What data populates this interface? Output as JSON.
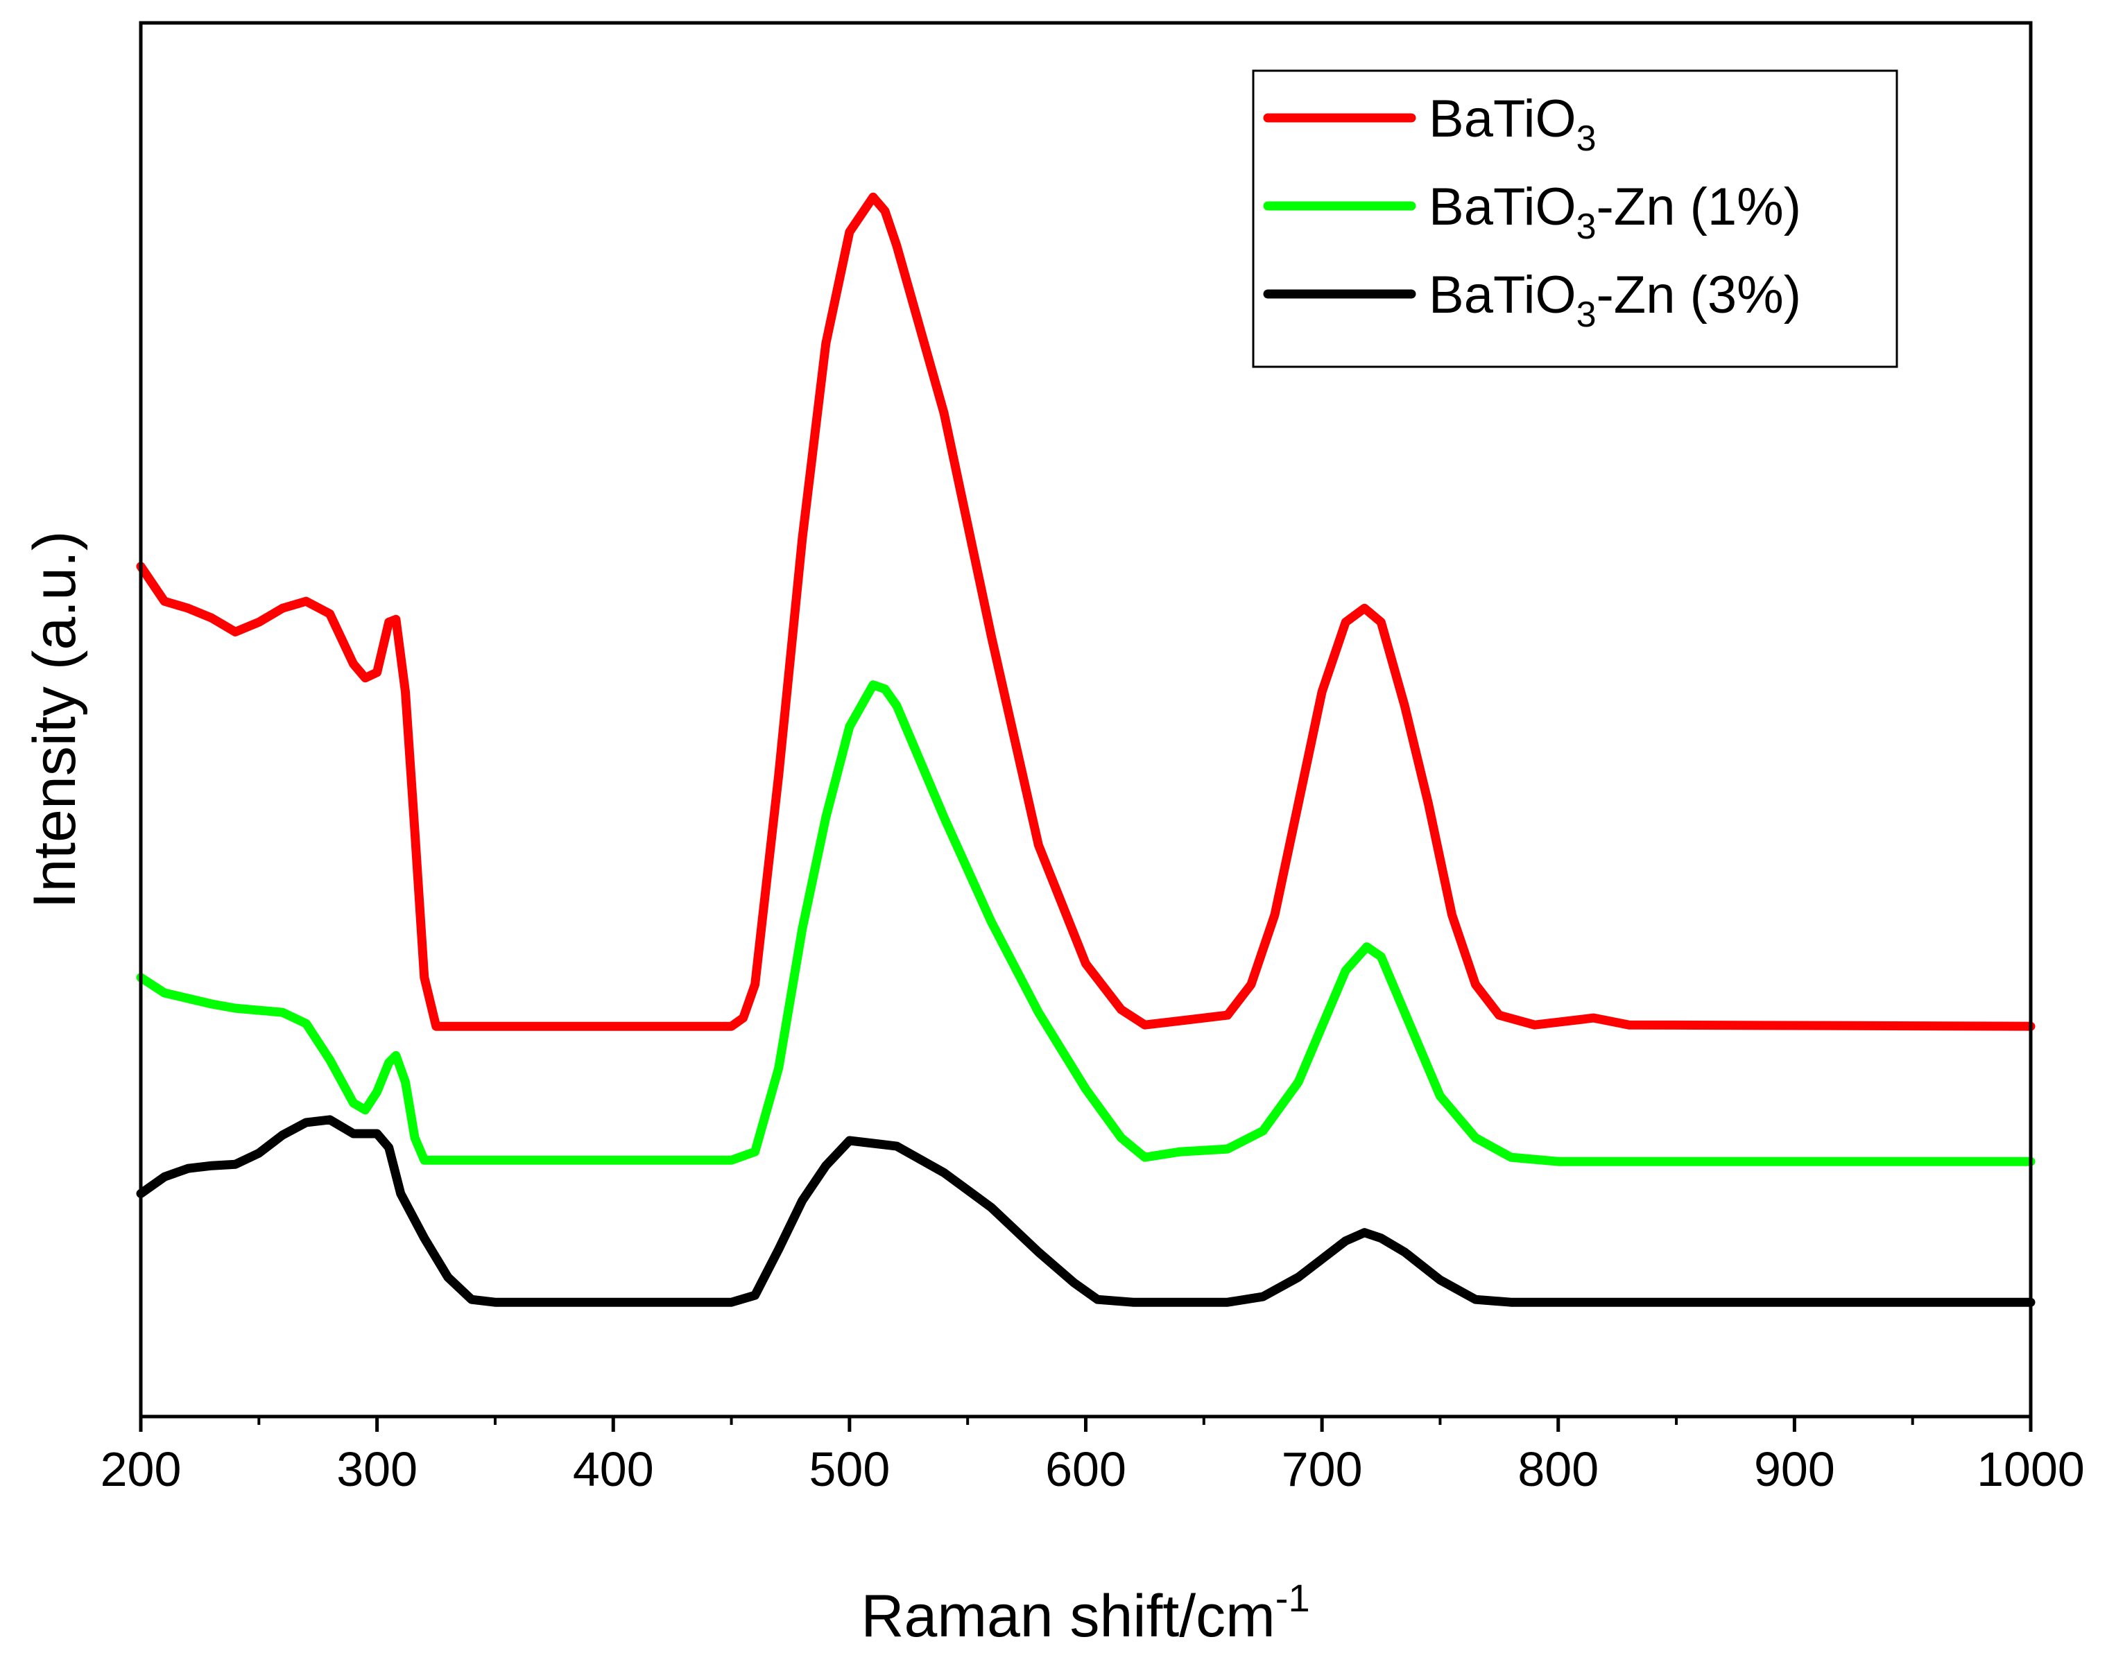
{
  "chart_data": {
    "type": "line",
    "title": "",
    "xlabel": "Raman shift/cm",
    "xlabel_superscript": "-1",
    "ylabel": "Intensity (a.u.)",
    "xlim": [
      200,
      1000
    ],
    "ylim": [
      0,
      100
    ],
    "xticks": [
      200,
      300,
      400,
      500,
      600,
      700,
      800,
      900,
      1000
    ],
    "yticks_shown": false,
    "legend_position": "top-right",
    "series": [
      {
        "name": "BaTiO3",
        "legend_parts": [
          "BaTiO",
          "3",
          ""
        ],
        "color": "#ff0000",
        "points": [
          [
            200,
            61
          ],
          [
            210,
            58.5
          ],
          [
            220,
            58
          ],
          [
            230,
            57.3
          ],
          [
            240,
            56.3
          ],
          [
            250,
            57
          ],
          [
            260,
            58
          ],
          [
            270,
            58.5
          ],
          [
            280,
            57.6
          ],
          [
            290,
            54
          ],
          [
            295,
            53
          ],
          [
            300,
            53.4
          ],
          [
            305,
            57
          ],
          [
            308,
            57.2
          ],
          [
            312,
            52
          ],
          [
            316,
            42
          ],
          [
            320,
            31.5
          ],
          [
            325,
            28
          ],
          [
            400,
            28
          ],
          [
            450,
            28
          ],
          [
            455,
            28.6
          ],
          [
            460,
            31
          ],
          [
            470,
            46
          ],
          [
            480,
            63
          ],
          [
            490,
            77
          ],
          [
            500,
            85
          ],
          [
            510,
            87.5
          ],
          [
            515,
            86.5
          ],
          [
            520,
            84
          ],
          [
            540,
            72
          ],
          [
            560,
            56
          ],
          [
            580,
            41
          ],
          [
            600,
            32.5
          ],
          [
            615,
            29.2
          ],
          [
            625,
            28.1
          ],
          [
            640,
            28.4
          ],
          [
            660,
            28.8
          ],
          [
            670,
            31
          ],
          [
            680,
            36
          ],
          [
            690,
            44
          ],
          [
            700,
            52
          ],
          [
            710,
            57
          ],
          [
            718,
            58
          ],
          [
            725,
            57
          ],
          [
            735,
            51
          ],
          [
            745,
            44
          ],
          [
            755,
            36
          ],
          [
            765,
            31
          ],
          [
            775,
            28.8
          ],
          [
            790,
            28.1
          ],
          [
            800,
            28.3
          ],
          [
            815,
            28.6
          ],
          [
            830,
            28.1
          ],
          [
            1000,
            28
          ]
        ]
      },
      {
        "name": "BaTiO3-Zn (1%)",
        "legend_parts": [
          "BaTiO",
          "3",
          "-Zn (1%)"
        ],
        "color": "#00ff00",
        "points": [
          [
            200,
            31.5
          ],
          [
            210,
            30.4
          ],
          [
            220,
            30
          ],
          [
            230,
            29.6
          ],
          [
            240,
            29.3
          ],
          [
            260,
            29
          ],
          [
            270,
            28.2
          ],
          [
            280,
            25.6
          ],
          [
            290,
            22.5
          ],
          [
            295,
            22
          ],
          [
            300,
            23.3
          ],
          [
            305,
            25.4
          ],
          [
            308,
            25.9
          ],
          [
            312,
            24
          ],
          [
            316,
            20
          ],
          [
            320,
            18.4
          ],
          [
            400,
            18.4
          ],
          [
            450,
            18.4
          ],
          [
            460,
            19
          ],
          [
            470,
            25
          ],
          [
            480,
            35
          ],
          [
            490,
            43
          ],
          [
            500,
            49.5
          ],
          [
            510,
            52.5
          ],
          [
            515,
            52.2
          ],
          [
            520,
            51
          ],
          [
            540,
            43
          ],
          [
            560,
            35.5
          ],
          [
            580,
            29
          ],
          [
            600,
            23.5
          ],
          [
            615,
            20
          ],
          [
            625,
            18.6
          ],
          [
            640,
            19
          ],
          [
            660,
            19.2
          ],
          [
            675,
            20.5
          ],
          [
            690,
            24
          ],
          [
            700,
            28
          ],
          [
            710,
            32
          ],
          [
            719,
            33.7
          ],
          [
            725,
            33
          ],
          [
            735,
            29
          ],
          [
            750,
            23
          ],
          [
            765,
            20
          ],
          [
            780,
            18.6
          ],
          [
            800,
            18.3
          ],
          [
            1000,
            18.3
          ]
        ]
      },
      {
        "name": "BaTiO3-Zn (3%)",
        "legend_parts": [
          "BaTiO",
          "3",
          "-Zn (3%)"
        ],
        "color": "#000000",
        "points": [
          [
            200,
            16
          ],
          [
            210,
            17.2
          ],
          [
            220,
            17.8
          ],
          [
            230,
            18
          ],
          [
            240,
            18.1
          ],
          [
            250,
            18.9
          ],
          [
            260,
            20.2
          ],
          [
            270,
            21.1
          ],
          [
            280,
            21.3
          ],
          [
            290,
            20.3
          ],
          [
            300,
            20.3
          ],
          [
            305,
            19.3
          ],
          [
            310,
            16
          ],
          [
            320,
            12.8
          ],
          [
            330,
            10
          ],
          [
            340,
            8.4
          ],
          [
            350,
            8.2
          ],
          [
            400,
            8.2
          ],
          [
            450,
            8.2
          ],
          [
            460,
            8.7
          ],
          [
            470,
            12
          ],
          [
            480,
            15.5
          ],
          [
            490,
            18
          ],
          [
            500,
            19.8
          ],
          [
            510,
            19.6
          ],
          [
            520,
            19.4
          ],
          [
            540,
            17.5
          ],
          [
            560,
            15
          ],
          [
            580,
            11.8
          ],
          [
            595,
            9.6
          ],
          [
            605,
            8.4
          ],
          [
            620,
            8.2
          ],
          [
            660,
            8.2
          ],
          [
            675,
            8.6
          ],
          [
            690,
            10
          ],
          [
            700,
            11.3
          ],
          [
            710,
            12.6
          ],
          [
            718,
            13.2
          ],
          [
            725,
            12.8
          ],
          [
            735,
            11.8
          ],
          [
            750,
            9.8
          ],
          [
            765,
            8.4
          ],
          [
            780,
            8.2
          ],
          [
            1000,
            8.2
          ]
        ]
      }
    ]
  }
}
